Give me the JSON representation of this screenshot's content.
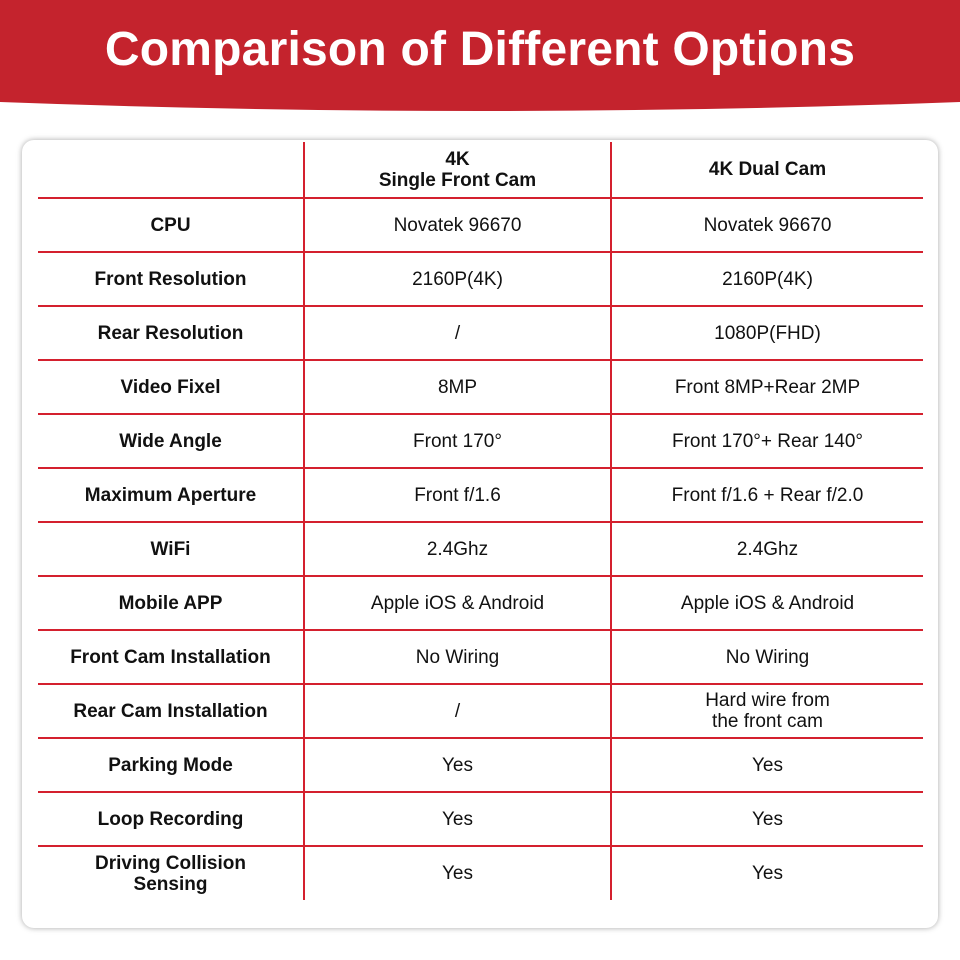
{
  "header": {
    "title": "Comparison of Different Options",
    "color": "#c4232d"
  },
  "table": {
    "columns": [
      "",
      "4K\nSingle Front Cam",
      "4K Dual Cam"
    ],
    "rows": [
      {
        "label": "CPU",
        "single": "Novatek 96670",
        "dual": "Novatek 96670"
      },
      {
        "label": "Front Resolution",
        "single": "2160P(4K)",
        "dual": "2160P(4K)"
      },
      {
        "label": "Rear Resolution",
        "single": "/",
        "dual": "1080P(FHD)"
      },
      {
        "label": "Video Fixel",
        "single": "8MP",
        "dual": "Front 8MP+Rear 2MP"
      },
      {
        "label": "Wide Angle",
        "single": "Front 170°",
        "dual": "Front 170°+ Rear 140°"
      },
      {
        "label": "Maximum Aperture",
        "single": "Front f/1.6",
        "dual": "Front f/1.6 + Rear f/2.0"
      },
      {
        "label": "WiFi",
        "single": "2.4Ghz",
        "dual": "2.4Ghz"
      },
      {
        "label": "Mobile APP",
        "single": "Apple iOS & Android",
        "dual": "Apple iOS & Android"
      },
      {
        "label": "Front Cam Installation",
        "single": "No Wiring",
        "dual": "No Wiring"
      },
      {
        "label": "Rear Cam Installation",
        "single": "/",
        "dual": "Hard wire from\nthe front cam"
      },
      {
        "label": "Parking Mode",
        "single": "Yes",
        "dual": "Yes"
      },
      {
        "label": "Loop Recording",
        "single": "Yes",
        "dual": "Yes"
      },
      {
        "label": "Driving Collision\nSensing",
        "single": "Yes",
        "dual": "Yes"
      }
    ],
    "line_color": "#d4202e"
  }
}
